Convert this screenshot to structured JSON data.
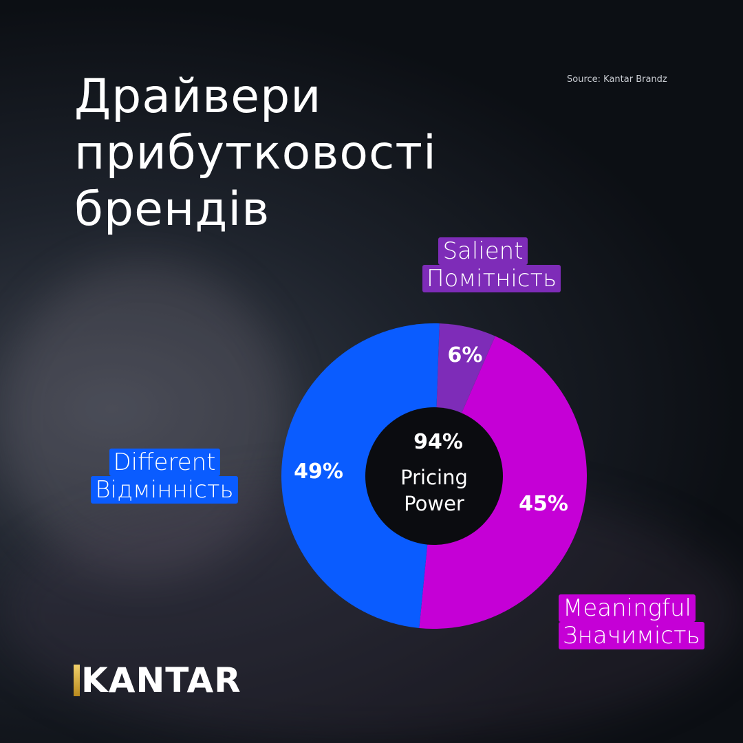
{
  "title_lines": [
    "Драйвери",
    "прибутковості",
    "брендів"
  ],
  "source": "Source: Kantar Brandz",
  "logo": "KANTAR",
  "chart_data": {
    "type": "pie",
    "donut": true,
    "center_value": "94%",
    "center_label_lines": [
      "Pricing",
      "Power"
    ],
    "slices": [
      {
        "name_en": "Salient",
        "name_uk": "Помітність",
        "value": 6,
        "label": "6%",
        "color": "#7e2cb8"
      },
      {
        "name_en": "Meaningful",
        "name_uk": "Значимість",
        "value": 45,
        "label": "45%",
        "color": "#c500d6"
      },
      {
        "name_en": "Different",
        "name_uk": "Відмінність",
        "value": 49,
        "label": "49%",
        "color": "#0a5cff"
      }
    ]
  }
}
